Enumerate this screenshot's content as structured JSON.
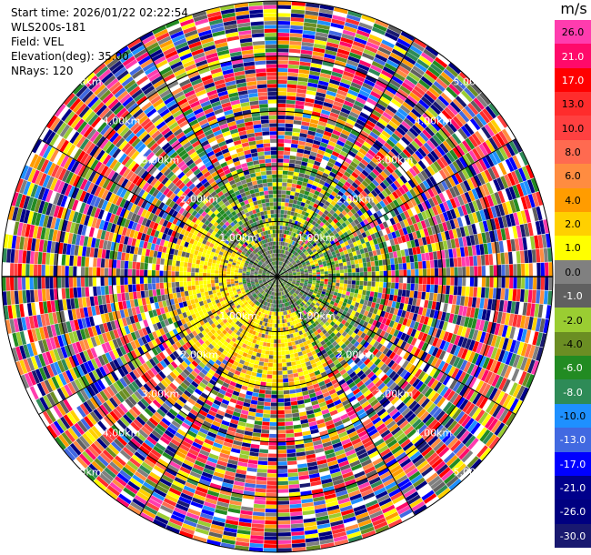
{
  "header": {
    "start_time": "Start time: 2026/01/22 02:22:54",
    "instrument": "WLS200s-181",
    "field": "Field: VEL",
    "elevation": "Elevation(deg): 35.00",
    "nrays": "NRays: 120"
  },
  "colorbar": {
    "unit": "m/s",
    "ticks": [
      "26.0",
      "21.0",
      "17.0",
      "13.0",
      "10.0",
      "8.0",
      "6.0",
      "4.0",
      "2.0",
      "1.0",
      "0.0",
      "-1.0",
      "-2.0",
      "-4.0",
      "-6.0",
      "-8.0",
      "-10.0",
      "-13.0",
      "-17.0",
      "-21.0",
      "-26.0",
      "-30.0"
    ],
    "colors": [
      "#ff3cae",
      "#ff0a6a",
      "#ff0000",
      "#ff2c2c",
      "#ff4040",
      "#ff6a50",
      "#ff8c40",
      "#ff9c00",
      "#ffd000",
      "#ffff00",
      "#808080",
      "#606060",
      "#9acd32",
      "#6b8e23",
      "#228b22",
      "#2e8b57",
      "#1e90ff",
      "#4169e1",
      "#0000ff",
      "#00008b",
      "#000080",
      "#191970"
    ]
  },
  "chart_data": {
    "type": "heatmap",
    "title": "",
    "field": "VEL",
    "unit": "m/s",
    "nrays": 120,
    "elevation_deg": 35.0,
    "range_rings_km": [
      1.0,
      2.0,
      3.0,
      4.0,
      5.0
    ],
    "range_labels": [
      "1.00km",
      "2.00km",
      "3.00km",
      "4.00km",
      "5.00km"
    ],
    "max_range_km": 5.0,
    "color_levels": [
      -30.0,
      -26.0,
      -21.0,
      -17.0,
      -13.0,
      -10.0,
      -8.0,
      -6.0,
      -4.0,
      -2.0,
      -1.0,
      0.0,
      1.0,
      2.0,
      4.0,
      6.0,
      8.0,
      10.0,
      13.0,
      17.0,
      21.0,
      26.0
    ],
    "zones": [
      {
        "from_km": 0.0,
        "to_km": 0.6,
        "dominant": "gray/green",
        "approx_velocity_ms": [
          -6,
          1
        ]
      },
      {
        "from_km": 0.6,
        "to_km": 2.0,
        "dominant": "yellow (west/south), green (north/east)",
        "approx_velocity_ms": [
          -6,
          4
        ]
      },
      {
        "from_km": 2.0,
        "to_km": 5.0,
        "dominant": "noise - all colors",
        "approx_velocity_ms": [
          -30,
          26
        ]
      }
    ]
  }
}
